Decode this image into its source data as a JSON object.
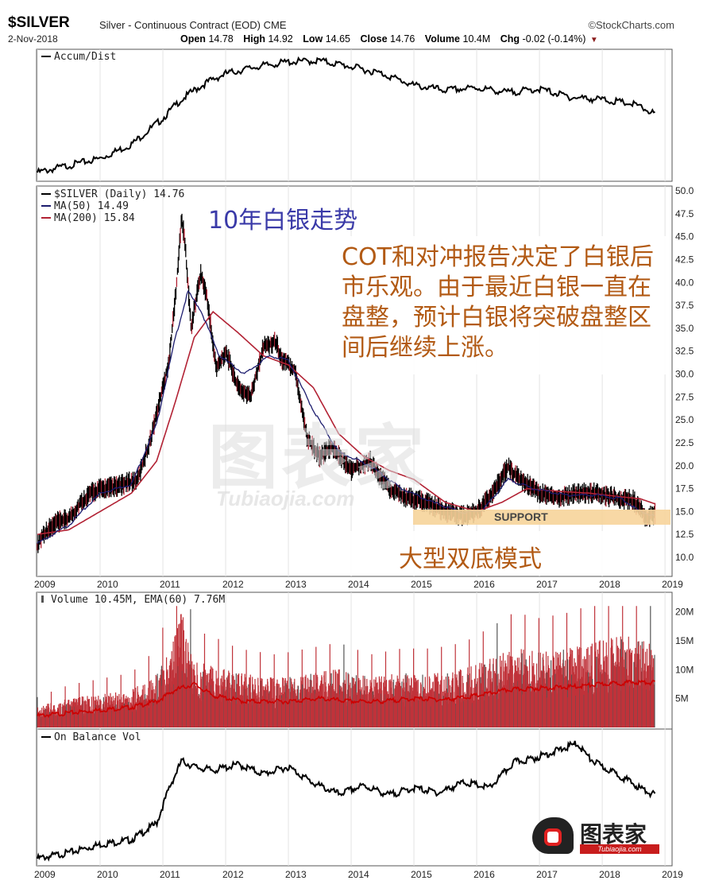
{
  "header": {
    "symbol": "$SILVER",
    "subtitle": "Silver - Continuous Contract (EOD) CME",
    "source": "©StockCharts.com",
    "date": "2-Nov-2018",
    "open_label": "Open",
    "open": "14.78",
    "high_label": "High",
    "high": "14.92",
    "low_label": "Low",
    "low": "14.65",
    "close_label": "Close",
    "close": "14.76",
    "volume_label": "Volume",
    "volume": "10.4M",
    "chg_label": "Chg",
    "chg": "-0.02 (-0.14%)",
    "chg_marker": "▼"
  },
  "overlays": {
    "title_cn": "10年白银走势",
    "note_cn": "COT和对冲报告决定了白银后市乐观。由于最近白银一直在盘整，预计白银将突破盘整区间后继续上涨。",
    "pattern_cn": "大型双底模式",
    "support": "SUPPORT",
    "watermark": "图表家",
    "watermark_latin": "Tubiaojia.com",
    "logo_text": "图表家",
    "logo_tag": "Tubiaojia.com"
  },
  "chart_data": [
    {
      "type": "line",
      "legend": "Accum/Dist",
      "x": [
        2009.0,
        2009.5,
        2010.0,
        2010.5,
        2011.0,
        2011.25,
        2011.5,
        2011.75,
        2012.0,
        2012.5,
        2013.0,
        2013.5,
        2014.0,
        2014.5,
        2015.0,
        2015.5,
        2016.0,
        2016.5,
        2017.0,
        2017.5,
        2018.0,
        2018.5,
        2018.84
      ],
      "values": [
        0.02,
        0.08,
        0.14,
        0.26,
        0.48,
        0.62,
        0.72,
        0.8,
        0.86,
        0.92,
        0.96,
        0.97,
        0.92,
        0.86,
        0.76,
        0.72,
        0.74,
        0.7,
        0.73,
        0.66,
        0.64,
        0.6,
        0.52
      ]
    },
    {
      "type": "line",
      "legend": "$SILVER (Daily) 14.76",
      "series": [
        {
          "name": "$SILVER (Daily) 14.76",
          "color": "#000000",
          "x": [
            2009.0,
            2009.1,
            2009.3,
            2009.5,
            2009.8,
            2010.0,
            2010.3,
            2010.6,
            2010.8,
            2011.0,
            2011.1,
            2011.2,
            2011.3,
            2011.35,
            2011.45,
            2011.6,
            2011.7,
            2011.85,
            2012.0,
            2012.2,
            2012.4,
            2012.6,
            2012.8,
            2012.9,
            2013.1,
            2013.3,
            2013.5,
            2013.7,
            2014.0,
            2014.3,
            2014.6,
            2014.9,
            2015.2,
            2015.5,
            2015.8,
            2016.0,
            2016.2,
            2016.5,
            2016.7,
            2017.0,
            2017.3,
            2017.6,
            2017.9,
            2018.2,
            2018.5,
            2018.7,
            2018.84
          ],
          "values": [
            11.2,
            12.6,
            13.8,
            14.2,
            16.8,
            17.5,
            17.8,
            18.5,
            22.8,
            28.5,
            31.5,
            38.5,
            47.0,
            44.5,
            35.0,
            41.0,
            38.5,
            30.5,
            32.5,
            28.5,
            27.5,
            33.0,
            33.5,
            31.5,
            30.5,
            23.0,
            21.0,
            22.0,
            19.5,
            20.5,
            17.5,
            16.5,
            16.0,
            15.0,
            14.5,
            15.0,
            16.5,
            19.8,
            18.5,
            17.0,
            16.5,
            17.0,
            17.0,
            16.5,
            16.2,
            14.3,
            14.76
          ]
        },
        {
          "name": "MA(50) 14.49",
          "color": "#1c1c6e",
          "x": [
            2009.0,
            2009.5,
            2010.0,
            2010.5,
            2010.9,
            2011.2,
            2011.4,
            2011.6,
            2011.9,
            2012.3,
            2012.7,
            2013.0,
            2013.4,
            2013.8,
            2014.3,
            2014.8,
            2015.3,
            2015.8,
            2016.1,
            2016.5,
            2016.9,
            2017.4,
            2017.9,
            2018.3,
            2018.6,
            2018.84
          ],
          "values": [
            11.5,
            13.5,
            17.0,
            18.0,
            24.5,
            34.0,
            39.0,
            37.0,
            32.0,
            30.0,
            32.0,
            31.5,
            26.0,
            21.5,
            20.0,
            17.5,
            16.0,
            14.8,
            15.2,
            18.5,
            17.5,
            16.8,
            16.8,
            16.4,
            15.0,
            14.49
          ]
        },
        {
          "name": "MA(200) 15.84",
          "color": "#b22234",
          "x": [
            2009.0,
            2009.5,
            2010.0,
            2010.5,
            2010.9,
            2011.2,
            2011.5,
            2011.8,
            2012.2,
            2012.6,
            2013.0,
            2013.4,
            2013.8,
            2014.2,
            2014.6,
            2015.0,
            2015.5,
            2016.0,
            2016.4,
            2016.8,
            2017.3,
            2017.8,
            2018.3,
            2018.6,
            2018.84
          ],
          "values": [
            12.5,
            13.0,
            15.0,
            17.0,
            20.5,
            27.0,
            34.0,
            36.8,
            34.5,
            32.0,
            31.0,
            28.5,
            23.5,
            21.0,
            19.5,
            18.5,
            16.0,
            15.0,
            16.0,
            17.5,
            17.2,
            17.0,
            16.6,
            16.4,
            15.84
          ]
        }
      ],
      "ylim": [
        8.5,
        51
      ],
      "yticks": [
        "50.0",
        "47.5",
        "45.0",
        "42.5",
        "40.0",
        "37.5",
        "35.0",
        "32.5",
        "30.0",
        "27.5",
        "25.0",
        "22.5",
        "20.0",
        "17.5",
        "15.0",
        "12.5",
        "10.0"
      ],
      "xticks": [
        "2009",
        "2010",
        "2011",
        "2012",
        "2013",
        "2014",
        "2015",
        "2016",
        "2017",
        "2018",
        "2019"
      ]
    },
    {
      "type": "bar",
      "legend": "Volume 10.45M, EMA(60) 7.76M",
      "series": [
        {
          "name": "Volume 10.45M",
          "color": "#c0333a",
          "x": [
            2009.0,
            2009.5,
            2010.0,
            2010.5,
            2010.9,
            2011.1,
            2011.3,
            2011.5,
            2011.8,
            2012.2,
            2012.8,
            2013.3,
            2013.8,
            2014.3,
            2014.8,
            2015.3,
            2015.8,
            2016.3,
            2016.6,
            2017.0,
            2017.5,
            2018.0,
            2018.4,
            2018.84
          ],
          "values": [
            2.5,
            3.5,
            4.0,
            4.5,
            6.5,
            10.0,
            14.0,
            8.0,
            7.5,
            6.5,
            6.0,
            6.5,
            7.0,
            6.0,
            6.5,
            6.5,
            7.0,
            8.5,
            9.5,
            9.0,
            9.5,
            10.5,
            11.0,
            10.45
          ]
        },
        {
          "name": "EMA(60) 7.76M",
          "color": "#cc0000",
          "x": [
            2009.0,
            2009.5,
            2010.0,
            2010.5,
            2010.9,
            2011.2,
            2011.5,
            2011.8,
            2012.3,
            2013.0,
            2013.5,
            2014.0,
            2014.5,
            2015.0,
            2015.5,
            2016.0,
            2016.5,
            2017.0,
            2017.5,
            2018.0,
            2018.5,
            2018.84
          ],
          "values": [
            2.0,
            2.5,
            3.0,
            3.5,
            4.5,
            6.5,
            7.5,
            5.5,
            4.5,
            4.5,
            5.0,
            4.5,
            4.5,
            5.0,
            4.8,
            5.5,
            6.5,
            6.8,
            7.0,
            7.5,
            7.8,
            7.76
          ]
        }
      ],
      "ylim": [
        0,
        22
      ],
      "yticks": [
        "20M",
        "15M",
        "10M",
        "5M"
      ]
    },
    {
      "type": "line",
      "legend": "On Balance Vol",
      "x": [
        2009.0,
        2009.5,
        2010.0,
        2010.5,
        2010.9,
        2011.1,
        2011.3,
        2011.5,
        2011.8,
        2012.2,
        2012.6,
        2013.0,
        2013.4,
        2013.8,
        2014.2,
        2014.6,
        2015.0,
        2015.4,
        2015.8,
        2016.2,
        2016.6,
        2016.9,
        2017.3,
        2017.6,
        2017.8,
        2018.0,
        2018.3,
        2018.6,
        2018.84
      ],
      "values": [
        0.0,
        0.05,
        0.12,
        0.16,
        0.3,
        0.6,
        0.83,
        0.78,
        0.75,
        0.8,
        0.72,
        0.78,
        0.64,
        0.55,
        0.62,
        0.54,
        0.6,
        0.56,
        0.65,
        0.6,
        0.82,
        0.85,
        0.92,
        0.98,
        0.85,
        0.78,
        0.7,
        0.6,
        0.54
      ],
      "xticks": [
        "2009",
        "2010",
        "2011",
        "2012",
        "2013",
        "2014",
        "2015",
        "2016",
        "2017",
        "2018",
        "2019"
      ]
    }
  ]
}
